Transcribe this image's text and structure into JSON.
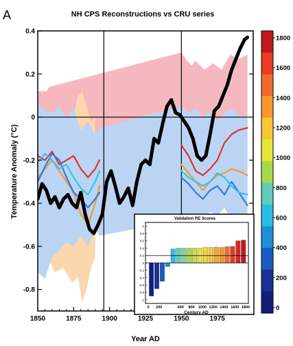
{
  "panel_label": "A",
  "chart_data": [
    {
      "type": "line",
      "title": "NH CPS Reconstructions vs CRU series",
      "xlabel": "Year AD",
      "ylabel": "Temperature Anomaly (°C)",
      "xlim": [
        1850,
        2000
      ],
      "ylim": [
        -0.9,
        0.4
      ],
      "xticks": [
        1850,
        1875,
        1900,
        1925,
        1950,
        1975
      ],
      "yticks": [
        0.4,
        0.2,
        0,
        -0.2,
        -0.4,
        -0.6,
        -0.8
      ],
      "ytick_labels": [
        "0.4",
        "0.2",
        "0",
        "-0.2",
        "-0.4",
        "-0.6",
        "-0.8"
      ],
      "grid": false,
      "zero_line": 0,
      "vertical_markers": [
        1896,
        1950
      ],
      "uncertainty_bands": [
        {
          "color": "#f5b8be",
          "x": [
            1850,
            1856,
            1858,
            1950,
            1953,
            1957,
            1960,
            1966,
            1972,
            1978,
            1984,
            1990,
            1996
          ],
          "upper": [
            0.12,
            0.12,
            0.14,
            0.3,
            0.27,
            0.24,
            0.26,
            0.22,
            0.25,
            0.22,
            0.29,
            0.27,
            0.29
          ],
          "lower": [
            -0.2,
            -0.2,
            -0.2,
            -0.3,
            -0.33,
            -0.36,
            -0.34,
            -0.38,
            -0.35,
            -0.33,
            -0.37,
            -0.34,
            -0.36
          ]
        },
        {
          "color": "#fbd7ad",
          "x": [
            1850,
            1856,
            1862,
            1868,
            1874,
            1878,
            1881,
            1884,
            1887,
            1890
          ],
          "upper": [
            -0.05,
            -0.08,
            -0.06,
            -0.04,
            -0.02,
            0.1,
            0.12,
            0.05,
            -0.02,
            0
          ],
          "lower": [
            -0.6,
            -0.64,
            -0.72,
            -0.7,
            -0.77,
            -0.74,
            -0.86,
            -0.8,
            -0.7,
            -0.65
          ]
        },
        {
          "color": "#bcd4f3",
          "x": [
            1850,
            1855,
            1860,
            1865,
            1870,
            1875,
            1880,
            1885,
            1890,
            1893,
            1950,
            1955,
            1960,
            1965,
            1970,
            1975,
            1980,
            1985,
            1990,
            1996
          ],
          "upper": [
            0.06,
            0.03,
            0.02,
            0.05,
            0.0,
            0.04,
            -0.06,
            -0.02,
            -0.08,
            -0.05,
            0.05,
            0.02,
            0.04,
            0.0,
            0.03,
            -0.02,
            0.02,
            0.04,
            0.01,
            0.0
          ],
          "lower": [
            -0.72,
            -0.75,
            -0.65,
            -0.62,
            -0.58,
            -0.6,
            -0.55,
            -0.6,
            -0.52,
            -0.55,
            -0.48,
            -0.5,
            -0.45,
            -0.47,
            -0.44,
            -0.46,
            -0.42,
            -0.48,
            -0.45,
            -0.5
          ]
        }
      ],
      "series": [
        {
          "color": "#000000",
          "x": [
            1850,
            1853,
            1856,
            1859,
            1862,
            1865,
            1868,
            1871,
            1874,
            1877,
            1880,
            1883,
            1886,
            1889,
            1892,
            1895,
            1898,
            1901,
            1904,
            1907,
            1910,
            1913,
            1916,
            1919,
            1922,
            1925,
            1928,
            1931,
            1934,
            1937,
            1940,
            1943,
            1946,
            1949,
            1952,
            1955,
            1958,
            1961,
            1964,
            1967,
            1970,
            1973,
            1976,
            1979,
            1982,
            1985,
            1988,
            1991,
            1994,
            1996
          ],
          "values": [
            -0.38,
            -0.31,
            -0.34,
            -0.4,
            -0.37,
            -0.42,
            -0.38,
            -0.36,
            -0.4,
            -0.42,
            -0.35,
            -0.45,
            -0.52,
            -0.54,
            -0.5,
            -0.45,
            -0.3,
            -0.25,
            -0.32,
            -0.4,
            -0.37,
            -0.33,
            -0.41,
            -0.3,
            -0.22,
            -0.2,
            -0.22,
            -0.1,
            -0.12,
            -0.03,
            0.05,
            0.08,
            0.02,
            0.01,
            -0.02,
            -0.05,
            -0.1,
            -0.18,
            -0.2,
            -0.18,
            -0.08,
            0.03,
            0.05,
            0.1,
            0.15,
            0.22,
            0.27,
            0.32,
            0.36,
            0.37
          ]
        },
        {
          "color": "#e22f2f",
          "x": [
            1850,
            1855,
            1860,
            1865,
            1870,
            1875,
            1880,
            1885,
            1890,
            1893,
            1950,
            1955,
            1960,
            1965,
            1970,
            1975,
            1980,
            1985,
            1990,
            1996
          ],
          "values": [
            -0.18,
            -0.2,
            -0.16,
            -0.22,
            -0.2,
            -0.18,
            -0.24,
            -0.28,
            -0.24,
            -0.2,
            -0.13,
            -0.18,
            -0.25,
            -0.27,
            -0.24,
            -0.2,
            -0.12,
            -0.08,
            -0.06,
            -0.05
          ]
        },
        {
          "color": "#f39a2e",
          "x": [
            1850,
            1855,
            1860,
            1865,
            1870,
            1875,
            1880,
            1885,
            1890,
            1893,
            1950,
            1955,
            1960,
            1965,
            1970,
            1975,
            1980,
            1985,
            1990,
            1996
          ],
          "values": [
            -0.28,
            -0.24,
            -0.2,
            -0.25,
            -0.3,
            -0.35,
            -0.45,
            -0.5,
            -0.4,
            -0.32,
            -0.22,
            -0.26,
            -0.3,
            -0.34,
            -0.3,
            -0.27,
            -0.26,
            -0.24,
            -0.25,
            -0.27
          ]
        },
        {
          "color": "#2d7be0",
          "x": [
            1850,
            1855,
            1860,
            1865,
            1870,
            1875,
            1880,
            1885,
            1890,
            1893,
            1950,
            1955,
            1960,
            1965,
            1970,
            1975,
            1980,
            1985,
            1990,
            1996
          ],
          "values": [
            -0.3,
            -0.23,
            -0.17,
            -0.2,
            -0.28,
            -0.35,
            -0.38,
            -0.42,
            -0.38,
            -0.35,
            -0.28,
            -0.31,
            -0.35,
            -0.38,
            -0.34,
            -0.32,
            -0.36,
            -0.3,
            -0.35,
            -0.41
          ]
        },
        {
          "color": "#2fc7e3",
          "x": [
            1850,
            1855,
            1860,
            1865,
            1870,
            1875,
            1880,
            1885,
            1890,
            1893,
            1950,
            1955,
            1960,
            1965,
            1970,
            1975,
            1980,
            1985,
            1990,
            1996
          ],
          "values": [
            -0.21,
            -0.17,
            -0.2,
            -0.24,
            -0.22,
            -0.28,
            -0.33,
            -0.36,
            -0.3,
            -0.25,
            -0.25,
            -0.28,
            -0.3,
            -0.32,
            -0.3,
            -0.26,
            -0.28,
            -0.32,
            -0.35,
            -0.36
          ]
        }
      ],
      "colorbar": {
        "ticks": [
          1800,
          1600,
          1400,
          1200,
          1000,
          800,
          600,
          400,
          200,
          0
        ],
        "colors": [
          "#c0181d",
          "#e83b22",
          "#f26a2c",
          "#f7972e",
          "#f8c736",
          "#e4e63a",
          "#a7da4a",
          "#61ccb7",
          "#2bbde6",
          "#1f8fd8",
          "#1a5bbf",
          "#1a3094",
          "#121e7a"
        ]
      }
    },
    {
      "type": "bar",
      "title": "Validation RE Scores",
      "xlabel": "Century AD",
      "xticks": [
        0,
        200,
        400,
        600,
        800,
        1000,
        1200,
        1400,
        1600,
        1800
      ],
      "xtick_labels": [
        "0",
        "200",
        "",
        "600",
        "800",
        "1000",
        "1200",
        "1400",
        "1600",
        "1800"
      ],
      "yticks": [
        1,
        0.8,
        0.6,
        0.4,
        0.2,
        0,
        -0.2,
        -0.4,
        -0.6,
        -0.8,
        -1
      ],
      "ytick_labels": [
        "1",
        "0.8",
        "0.6",
        "0.4",
        "0.2",
        "0",
        "-0.2",
        "-0.4",
        "-0.6",
        "-0.8",
        "-1"
      ],
      "ylim": [
        -1.1,
        1.1
      ],
      "reference_lines": [
        0,
        0.2
      ],
      "x": [
        100,
        200,
        300,
        400,
        500,
        600,
        700,
        800,
        900,
        1000,
        1100,
        1200,
        1300,
        1400,
        1500,
        1600,
        1700,
        1800
      ],
      "values": [
        -0.9,
        -0.7,
        -0.5,
        -0.1,
        0.38,
        0.4,
        0.4,
        0.4,
        0.4,
        0.4,
        0.42,
        0.42,
        0.43,
        0.42,
        0.44,
        0.45,
        0.6,
        0.62
      ],
      "colors": [
        "#0f1f88",
        "#1a3094",
        "#1a5bbf",
        "#1f8fd8",
        "#2bbde6",
        "#61ccb7",
        "#7fd49a",
        "#a7da4a",
        "#c8de3f",
        "#e4e63a",
        "#f3d537",
        "#f8c736",
        "#f7a830",
        "#f7972e",
        "#f26a2c",
        "#e83b22",
        "#d42a20",
        "#c0181d"
      ]
    }
  ]
}
